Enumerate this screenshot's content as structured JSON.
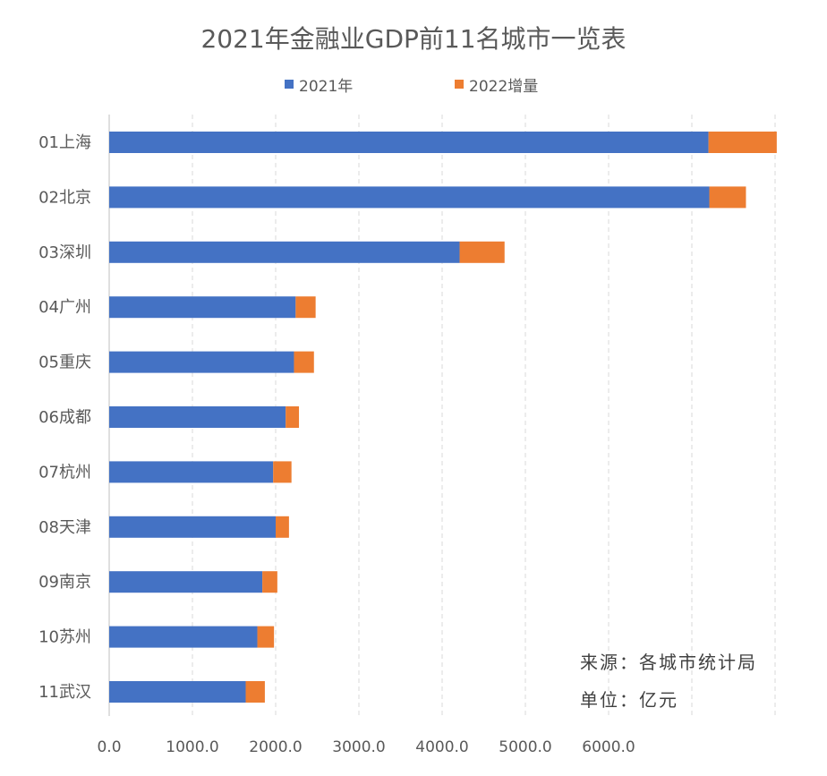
{
  "chart_data": {
    "type": "bar",
    "orientation": "horizontal",
    "stacked": true,
    "title": "2021年金融业GDP前11名城市一览表",
    "categories": [
      "01上海",
      "02北京",
      "03深圳",
      "04广州",
      "05重庆",
      "06成都",
      "07杭州",
      "08天津",
      "09南京",
      "10苏州",
      "11武汉"
    ],
    "series": [
      {
        "name": "2021年",
        "color": "#4472C4",
        "values": [
          7200,
          7210,
          4210,
          2240,
          2220,
          2120,
          1970,
          2000,
          1840,
          1780,
          1640
        ]
      },
      {
        "name": "2022增量",
        "color": "#ED7D31",
        "values": [
          820,
          440,
          540,
          240,
          240,
          160,
          220,
          160,
          180,
          200,
          230
        ]
      }
    ],
    "x_ticks": [
      "0.0",
      "1000.0",
      "2000.0",
      "3000.0",
      "4000.0",
      "5000.0",
      "6000.0"
    ],
    "xlim": [
      0,
      8000
    ],
    "grid": "vertical-dashed",
    "legend_position": "top"
  },
  "notes": {
    "source": "来源：各城市统计局",
    "unit": "单位：亿元"
  }
}
